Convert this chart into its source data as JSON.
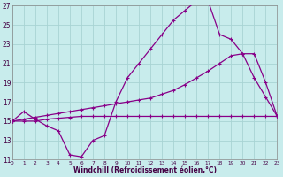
{
  "background_color": "#c8ecec",
  "grid_color": "#a8d4d4",
  "line_color": "#880088",
  "xlabel": "Windchill (Refroidissement éolien,°C)",
  "xlim": [
    0,
    23
  ],
  "ylim": [
    11,
    27
  ],
  "yticks": [
    11,
    13,
    15,
    17,
    19,
    21,
    23,
    25,
    27
  ],
  "xticks": [
    0,
    1,
    2,
    3,
    4,
    5,
    6,
    7,
    8,
    9,
    10,
    11,
    12,
    13,
    14,
    15,
    16,
    17,
    18,
    19,
    20,
    21,
    22,
    23
  ],
  "line1_x": [
    0,
    1,
    2,
    3,
    4,
    5,
    6,
    7,
    8,
    9,
    10,
    11,
    12,
    13,
    14,
    15,
    16,
    17,
    18,
    19,
    20,
    21,
    22,
    23
  ],
  "line1_y": [
    15,
    16,
    15.2,
    14.5,
    14.0,
    11.5,
    11.3,
    13.0,
    13.5,
    17.0,
    19.5,
    21.0,
    22.5,
    24.0,
    25.5,
    26.5,
    27.5,
    27.5,
    24.0,
    23.5,
    22.0,
    19.5,
    17.5,
    15.5
  ],
  "line2_x": [
    0,
    1,
    2,
    3,
    4,
    5,
    6,
    7,
    8,
    9,
    10,
    11,
    12,
    13,
    14,
    15,
    16,
    17,
    18,
    19,
    20,
    21,
    22,
    23
  ],
  "line2_y": [
    15.0,
    15.0,
    15.0,
    15.2,
    15.3,
    15.4,
    15.5,
    15.5,
    15.5,
    15.5,
    15.5,
    15.5,
    15.5,
    15.5,
    15.5,
    15.5,
    15.5,
    15.5,
    15.5,
    15.5,
    15.5,
    15.5,
    15.5,
    15.5
  ],
  "line3_x": [
    0,
    1,
    2,
    3,
    4,
    5,
    6,
    7,
    8,
    9,
    10,
    11,
    12,
    13,
    14,
    15,
    16,
    17,
    18,
    19,
    20,
    21,
    22,
    23
  ],
  "line3_y": [
    15.0,
    15.2,
    15.4,
    15.6,
    15.8,
    16.0,
    16.2,
    16.4,
    16.6,
    16.8,
    17.0,
    17.2,
    17.4,
    17.8,
    18.2,
    18.8,
    19.5,
    20.2,
    21.0,
    21.8,
    22.0,
    22.0,
    19.0,
    15.5
  ]
}
